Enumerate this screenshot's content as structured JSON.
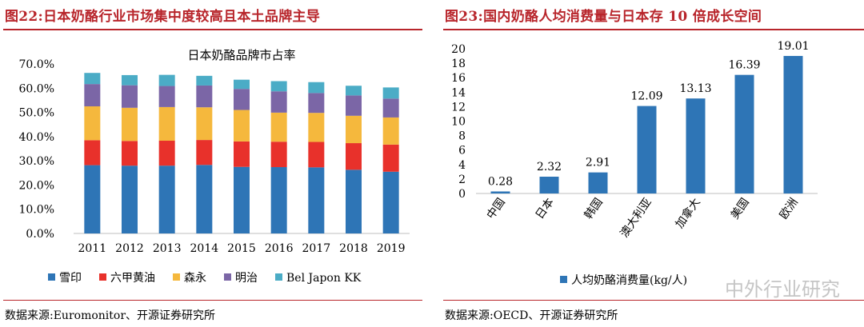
{
  "left": {
    "title": "图22:日本奶酪行业市场集中度较高且本土品牌主导",
    "source": "数据来源:Euromonitor、开源证券研究所"
  },
  "right": {
    "title": "图23:国内奶酪人均消费量与日本存 10 倍成长空间",
    "source": "数据来源:OECD、开源证券研究所",
    "watermark": "中外行业研究"
  },
  "chart_data": [
    {
      "type": "bar",
      "stacked": true,
      "title": "日本奶酪品牌市占率",
      "categories": [
        "2011",
        "2012",
        "2013",
        "2014",
        "2015",
        "2016",
        "2017",
        "2018",
        "2019"
      ],
      "ylim": [
        0,
        70
      ],
      "yticks": [
        "0.0%",
        "10.0%",
        "20.0%",
        "30.0%",
        "40.0%",
        "50.0%",
        "60.0%",
        "70.0%"
      ],
      "legend_position": "bottom",
      "series": [
        {
          "name": "雪印",
          "color": "#2e75b6",
          "values": [
            28.2,
            28.0,
            28.0,
            28.3,
            27.5,
            27.4,
            27.3,
            26.3,
            25.5
          ]
        },
        {
          "name": "六甲黄油",
          "color": "#e8312b",
          "values": [
            10.3,
            10.2,
            10.3,
            10.3,
            10.5,
            10.5,
            10.5,
            11.0,
            11.2
          ]
        },
        {
          "name": "森永",
          "color": "#f5b83d",
          "values": [
            14.0,
            13.7,
            13.9,
            13.5,
            13.0,
            12.0,
            12.0,
            11.3,
            11.2
          ]
        },
        {
          "name": "明治",
          "color": "#7b66a6",
          "values": [
            9.2,
            9.3,
            8.7,
            9.0,
            8.7,
            8.8,
            8.2,
            8.4,
            7.8
          ]
        },
        {
          "name": "Bel Japon KK",
          "color": "#4bacc6",
          "values": [
            4.6,
            4.2,
            4.6,
            4.0,
            3.8,
            4.2,
            4.5,
            4.0,
            4.6
          ]
        }
      ]
    },
    {
      "type": "bar",
      "title": "",
      "categories": [
        "中国",
        "日本",
        "韩国",
        "澳大利亚",
        "加拿大",
        "美国",
        "欧洲"
      ],
      "series": [
        {
          "name": "人均奶酪消费量(kg/人)",
          "color": "#2e75b6",
          "values": [
            0.28,
            2.32,
            2.91,
            12.09,
            13.13,
            16.39,
            19.01
          ]
        }
      ],
      "labels": [
        "0.28",
        "2.32",
        "2.91",
        "12.09",
        "13.13",
        "16.39",
        "19.01"
      ],
      "ylim": [
        0,
        20
      ],
      "yticks": [
        "0",
        "2",
        "4",
        "6",
        "8",
        "10",
        "12",
        "14",
        "16",
        "18",
        "20"
      ],
      "legend_position": "bottom"
    }
  ]
}
